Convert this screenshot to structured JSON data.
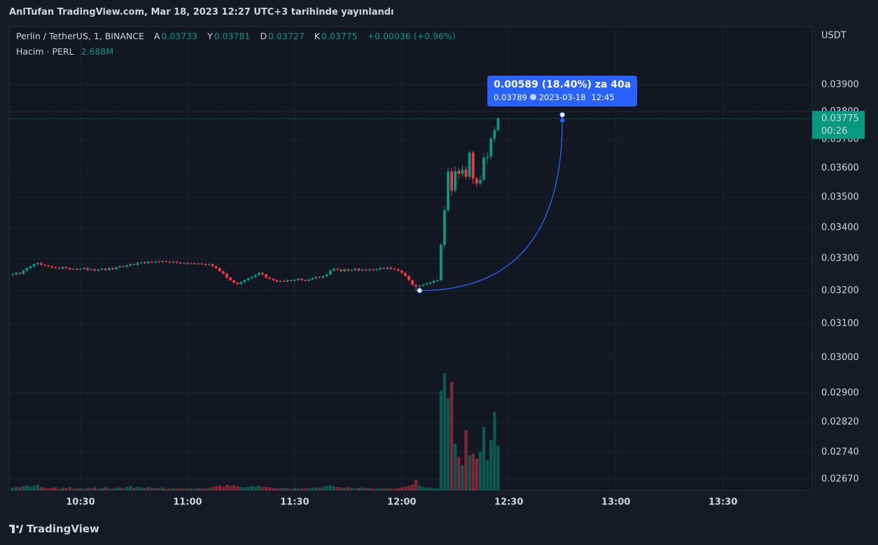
{
  "chart_data": {
    "type": "candlestick",
    "published_note": "AnlTufan TradingView.com, Mar 18, 2023 12:27 UTC+3 tarihinde yayınlandı",
    "title": "Perlin / TetherUS, 1, BINANCE",
    "legend": [
      {
        "key": "A",
        "value": "0.03733"
      },
      {
        "key": "Y",
        "value": "0.03781"
      },
      {
        "key": "D",
        "value": "0.03727"
      },
      {
        "key": "K",
        "value": "0.03775"
      }
    ],
    "change": "+0.00036 (+0.96%)",
    "volume_title": "Hacim · PERL",
    "volume_last_label": "2.688M",
    "y_unit": "USDT",
    "brand": "TradingView",
    "up_color": "#089981",
    "down_color": "#f23645",
    "log_scale": true,
    "grid": true,
    "ylim": [
      0.02641,
      0.04124
    ],
    "yticks": [
      {
        "value": 0.039,
        "label": "0.03900"
      },
      {
        "value": 0.038,
        "label": "0.03800"
      },
      {
        "value": 0.037,
        "label": "0.03700"
      },
      {
        "value": 0.036,
        "label": "0.03600"
      },
      {
        "value": 0.035,
        "label": "0.03500"
      },
      {
        "value": 0.034,
        "label": "0.03400"
      },
      {
        "value": 0.033,
        "label": "0.03300"
      },
      {
        "value": 0.032,
        "label": "0.03200"
      },
      {
        "value": 0.031,
        "label": "0.03100"
      },
      {
        "value": 0.03,
        "label": "0.03000"
      },
      {
        "value": 0.029,
        "label": "0.02900"
      },
      {
        "value": 0.0282,
        "label": "0.02820"
      },
      {
        "value": 0.0274,
        "label": "0.02740"
      },
      {
        "value": 0.0267,
        "label": "0.02670"
      }
    ],
    "xlim": [
      "10:10",
      "13:55"
    ],
    "xticks": [
      "10:30",
      "11:00",
      "11:30",
      "12:00",
      "12:30",
      "13:00",
      "13:30"
    ],
    "last_price": 0.03775,
    "last_price_label": "0.03775",
    "countdown": "00:26",
    "x": [
      "10:11",
      "10:12",
      "10:13",
      "10:14",
      "10:15",
      "10:16",
      "10:17",
      "10:18",
      "10:19",
      "10:20",
      "10:21",
      "10:22",
      "10:23",
      "10:24",
      "10:25",
      "10:26",
      "10:27",
      "10:28",
      "10:29",
      "10:30",
      "10:31",
      "10:32",
      "10:33",
      "10:34",
      "10:35",
      "10:36",
      "10:37",
      "10:38",
      "10:39",
      "10:40",
      "10:41",
      "10:42",
      "10:43",
      "10:44",
      "10:45",
      "10:46",
      "10:47",
      "10:48",
      "10:49",
      "10:50",
      "10:51",
      "10:52",
      "10:53",
      "10:54",
      "10:55",
      "10:56",
      "10:57",
      "10:58",
      "10:59",
      "11:00",
      "11:01",
      "11:02",
      "11:03",
      "11:04",
      "11:05",
      "11:06",
      "11:07",
      "11:08",
      "11:09",
      "11:10",
      "11:11",
      "11:12",
      "11:13",
      "11:14",
      "11:15",
      "11:16",
      "11:17",
      "11:18",
      "11:19",
      "11:20",
      "11:21",
      "11:22",
      "11:23",
      "11:24",
      "11:25",
      "11:26",
      "11:27",
      "11:28",
      "11:29",
      "11:30",
      "11:31",
      "11:32",
      "11:33",
      "11:34",
      "11:35",
      "11:36",
      "11:37",
      "11:38",
      "11:39",
      "11:40",
      "11:41",
      "11:42",
      "11:43",
      "11:44",
      "11:45",
      "11:46",
      "11:47",
      "11:48",
      "11:49",
      "11:50",
      "11:51",
      "11:52",
      "11:53",
      "11:54",
      "11:55",
      "11:56",
      "11:57",
      "11:58",
      "11:59",
      "12:00",
      "12:01",
      "12:02",
      "12:03",
      "12:04",
      "12:05",
      "12:06",
      "12:07",
      "12:08",
      "12:09",
      "12:10",
      "12:11",
      "12:12",
      "12:13",
      "12:14",
      "12:15",
      "12:16",
      "12:17",
      "12:18",
      "12:19",
      "12:20",
      "12:21",
      "12:22",
      "12:23",
      "12:24",
      "12:25",
      "12:26",
      "12:27"
    ],
    "open": [
      0.03248,
      0.0325,
      0.03255,
      0.03252,
      0.03262,
      0.0327,
      0.03275,
      0.03282,
      0.03286,
      0.0328,
      0.03278,
      0.03276,
      0.03272,
      0.0327,
      0.03268,
      0.03273,
      0.0327,
      0.03266,
      0.03268,
      0.03265,
      0.03267,
      0.0327,
      0.03264,
      0.03266,
      0.03262,
      0.03265,
      0.03268,
      0.03264,
      0.0327,
      0.03266,
      0.03272,
      0.03276,
      0.03274,
      0.03278,
      0.03282,
      0.0328,
      0.03286,
      0.03288,
      0.03285,
      0.0329,
      0.03288,
      0.03291,
      0.03289,
      0.03292,
      0.0329,
      0.03288,
      0.0329,
      0.03287,
      0.03285,
      0.03286,
      0.03284,
      0.03285,
      0.03283,
      0.03284,
      0.03282,
      0.0328,
      0.03282,
      0.03276,
      0.0327,
      0.0326,
      0.03252,
      0.0324,
      0.03232,
      0.03224,
      0.0322,
      0.03226,
      0.03232,
      0.03238,
      0.03242,
      0.03248,
      0.03255,
      0.0325,
      0.0324,
      0.03236,
      0.03232,
      0.03228,
      0.0323,
      0.03228,
      0.03232,
      0.0323,
      0.03233,
      0.03236,
      0.03232,
      0.0323,
      0.03234,
      0.03238,
      0.03242,
      0.0324,
      0.03244,
      0.0325,
      0.03262,
      0.03268,
      0.03265,
      0.0326,
      0.03266,
      0.03262,
      0.03264,
      0.03268,
      0.03262,
      0.03265,
      0.03263,
      0.03266,
      0.03264,
      0.03266,
      0.0327,
      0.03268,
      0.03272,
      0.03268,
      0.03266,
      0.03262,
      0.03255,
      0.03245,
      0.03232,
      0.03218,
      0.03212,
      0.03215,
      0.03218,
      0.03222,
      0.03225,
      0.0323,
      0.03232,
      0.03343,
      0.03457,
      0.03588,
      0.03523,
      0.0359,
      0.0358,
      0.03595,
      0.0357,
      0.03654,
      0.03564,
      0.03547,
      0.0356,
      0.03636,
      0.0364,
      0.03703,
      0.03733
    ],
    "high": [
      0.03253,
      0.03258,
      0.03258,
      0.03265,
      0.03273,
      0.03278,
      0.03285,
      0.03289,
      0.03289,
      0.03283,
      0.03281,
      0.03279,
      0.03275,
      0.03273,
      0.03276,
      0.03276,
      0.03273,
      0.03271,
      0.03271,
      0.0327,
      0.03273,
      0.03273,
      0.03269,
      0.03269,
      0.03268,
      0.03271,
      0.03271,
      0.03273,
      0.03273,
      0.03275,
      0.03279,
      0.03279,
      0.03281,
      0.03285,
      0.03285,
      0.03289,
      0.03291,
      0.03291,
      0.03293,
      0.03293,
      0.03294,
      0.03294,
      0.03295,
      0.03295,
      0.03293,
      0.03293,
      0.03293,
      0.0329,
      0.03289,
      0.03289,
      0.03288,
      0.03288,
      0.03287,
      0.03287,
      0.03285,
      0.03285,
      0.03285,
      0.03279,
      0.03273,
      0.03263,
      0.03255,
      0.03243,
      0.03235,
      0.03227,
      0.03229,
      0.03235,
      0.03241,
      0.03245,
      0.03251,
      0.03258,
      0.03258,
      0.03253,
      0.03243,
      0.03239,
      0.03235,
      0.03233,
      0.03233,
      0.03235,
      0.03235,
      0.03236,
      0.03239,
      0.03239,
      0.03235,
      0.03237,
      0.03241,
      0.03245,
      0.03245,
      0.03247,
      0.03253,
      0.03265,
      0.03271,
      0.03271,
      0.03268,
      0.03269,
      0.03269,
      0.03267,
      0.03271,
      0.03271,
      0.03268,
      0.03268,
      0.03269,
      0.03269,
      0.03269,
      0.03273,
      0.03273,
      0.03275,
      0.03275,
      0.03271,
      0.03269,
      0.03265,
      0.03258,
      0.03248,
      0.03235,
      0.03221,
      0.03218,
      0.03221,
      0.03225,
      0.03228,
      0.03233,
      0.03235,
      0.0335,
      0.0347,
      0.036,
      0.036,
      0.03605,
      0.036,
      0.0361,
      0.03605,
      0.0366,
      0.0366,
      0.0357,
      0.03575,
      0.0365,
      0.03655,
      0.0371,
      0.03745,
      0.03781
    ],
    "low": [
      0.03245,
      0.03247,
      0.03249,
      0.03249,
      0.03259,
      0.03267,
      0.03272,
      0.03279,
      0.03277,
      0.03275,
      0.03273,
      0.03269,
      0.03267,
      0.03265,
      0.03265,
      0.03267,
      0.03263,
      0.03263,
      0.03262,
      0.03262,
      0.03264,
      0.03261,
      0.03261,
      0.03259,
      0.03259,
      0.03262,
      0.03261,
      0.03261,
      0.03263,
      0.03263,
      0.03269,
      0.03271,
      0.03271,
      0.03275,
      0.03277,
      0.03277,
      0.03283,
      0.03282,
      0.03282,
      0.03285,
      0.03285,
      0.03286,
      0.03286,
      0.03287,
      0.03285,
      0.03285,
      0.03284,
      0.03282,
      0.03282,
      0.03281,
      0.03281,
      0.0328,
      0.0328,
      0.03279,
      0.03277,
      0.03277,
      0.03273,
      0.03267,
      0.03257,
      0.03249,
      0.03237,
      0.03229,
      0.03221,
      0.03217,
      0.03217,
      0.03223,
      0.03229,
      0.03235,
      0.03239,
      0.03245,
      0.03247,
      0.03237,
      0.03233,
      0.03229,
      0.03225,
      0.03225,
      0.03225,
      0.03225,
      0.03227,
      0.03227,
      0.0323,
      0.03229,
      0.03227,
      0.03227,
      0.03231,
      0.03235,
      0.03237,
      0.03237,
      0.03241,
      0.03247,
      0.03259,
      0.03262,
      0.03257,
      0.03257,
      0.03259,
      0.03259,
      0.03261,
      0.03259,
      0.03259,
      0.0326,
      0.0326,
      0.03261,
      0.03261,
      0.03263,
      0.03265,
      0.03265,
      0.03265,
      0.03263,
      0.03259,
      0.03252,
      0.03242,
      0.03229,
      0.03215,
      0.032,
      0.03209,
      0.03212,
      0.03215,
      0.03219,
      0.03222,
      0.03227,
      0.03229,
      0.0333,
      0.0345,
      0.03505,
      0.03515,
      0.0356,
      0.0357,
      0.0356,
      0.0356,
      0.03545,
      0.03535,
      0.0354,
      0.03555,
      0.03615,
      0.0363,
      0.0369,
      0.03727
    ],
    "close": [
      0.0325,
      0.03255,
      0.03252,
      0.03262,
      0.0327,
      0.03275,
      0.03282,
      0.03286,
      0.0328,
      0.03278,
      0.03276,
      0.03272,
      0.0327,
      0.03268,
      0.03273,
      0.0327,
      0.03266,
      0.03268,
      0.03265,
      0.03267,
      0.0327,
      0.03264,
      0.03266,
      0.03262,
      0.03265,
      0.03268,
      0.03264,
      0.0327,
      0.03266,
      0.03272,
      0.03276,
      0.03274,
      0.03278,
      0.03282,
      0.0328,
      0.03286,
      0.03288,
      0.03285,
      0.0329,
      0.03288,
      0.03291,
      0.03289,
      0.03292,
      0.0329,
      0.03288,
      0.0329,
      0.03287,
      0.03285,
      0.03286,
      0.03284,
      0.03285,
      0.03283,
      0.03284,
      0.03282,
      0.0328,
      0.03282,
      0.03276,
      0.0327,
      0.0326,
      0.03252,
      0.0324,
      0.03232,
      0.03224,
      0.0322,
      0.03226,
      0.03232,
      0.03238,
      0.03242,
      0.03248,
      0.03255,
      0.0325,
      0.0324,
      0.03236,
      0.03232,
      0.03228,
      0.0323,
      0.03228,
      0.03232,
      0.0323,
      0.03233,
      0.03236,
      0.03232,
      0.0323,
      0.03234,
      0.03238,
      0.03242,
      0.0324,
      0.03244,
      0.0325,
      0.03262,
      0.03268,
      0.03265,
      0.0326,
      0.03266,
      0.03262,
      0.03264,
      0.03268,
      0.03262,
      0.03265,
      0.03263,
      0.03266,
      0.03264,
      0.03266,
      0.0327,
      0.03268,
      0.03272,
      0.03268,
      0.03266,
      0.03262,
      0.03255,
      0.03245,
      0.03232,
      0.03218,
      0.03212,
      0.03215,
      0.03218,
      0.03222,
      0.03225,
      0.0323,
      0.03232,
      0.03343,
      0.03457,
      0.03588,
      0.03523,
      0.0359,
      0.0358,
      0.03595,
      0.0357,
      0.03654,
      0.03564,
      0.03547,
      0.0356,
      0.03636,
      0.0364,
      0.03703,
      0.03733,
      0.03775
    ],
    "volume": [
      0.15,
      0.2,
      0.18,
      0.25,
      0.3,
      0.22,
      0.28,
      0.35,
      0.2,
      0.15,
      0.12,
      0.14,
      0.18,
      0.1,
      0.16,
      0.12,
      0.2,
      0.1,
      0.14,
      0.12,
      0.1,
      0.15,
      0.12,
      0.18,
      0.1,
      0.14,
      0.2,
      0.12,
      0.1,
      0.15,
      0.18,
      0.12,
      0.2,
      0.25,
      0.15,
      0.22,
      0.18,
      0.12,
      0.2,
      0.15,
      0.14,
      0.12,
      0.18,
      0.1,
      0.12,
      0.15,
      0.1,
      0.12,
      0.1,
      0.14,
      0.12,
      0.1,
      0.14,
      0.1,
      0.12,
      0.15,
      0.2,
      0.25,
      0.3,
      0.22,
      0.35,
      0.28,
      0.3,
      0.25,
      0.2,
      0.18,
      0.22,
      0.25,
      0.2,
      0.28,
      0.2,
      0.22,
      0.18,
      0.15,
      0.12,
      0.14,
      0.12,
      0.15,
      0.1,
      0.14,
      0.12,
      0.1,
      0.14,
      0.12,
      0.15,
      0.18,
      0.15,
      0.2,
      0.28,
      0.3,
      0.25,
      0.2,
      0.18,
      0.15,
      0.2,
      0.14,
      0.12,
      0.15,
      0.18,
      0.12,
      0.14,
      0.12,
      0.1,
      0.15,
      0.12,
      0.14,
      0.12,
      0.1,
      0.14,
      0.18,
      0.22,
      0.28,
      0.35,
      0.63,
      0.3,
      0.2,
      0.15,
      0.18,
      0.12,
      0.15,
      5.97,
      7.0,
      5.5,
      6.5,
      2.8,
      2.0,
      1.5,
      3.6,
      2.1,
      2.2,
      1.9,
      2.3,
      3.8,
      1.8,
      3.0,
      4.7,
      2.688
    ],
    "annotation": {
      "text": "0.00589 (18.40%) za 40a",
      "price": "0.03789",
      "date": "2023-03-18",
      "time": "12:45",
      "color": "#2962ff",
      "start": {
        "x": "12:05",
        "y": 0.032
      },
      "end": {
        "x": "12:45",
        "y": 0.03789
      }
    }
  }
}
